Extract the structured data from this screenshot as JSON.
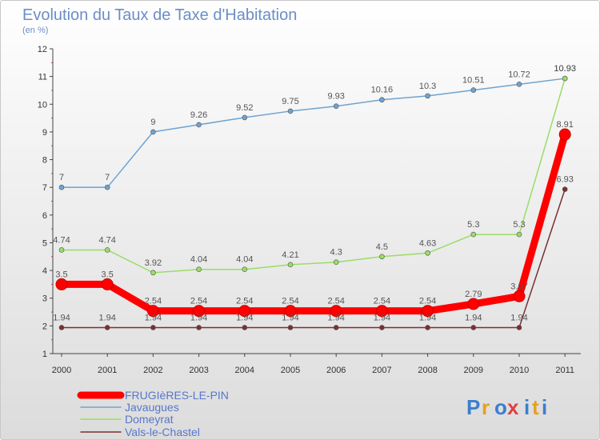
{
  "chart_data": {
    "type": "line",
    "title": "Evolution du Taux de Taxe d'Habitation",
    "subtitle": "(en %)",
    "x": [
      "2000",
      "2001",
      "2002",
      "2003",
      "2004",
      "2005",
      "2006",
      "2007",
      "2008",
      "2009",
      "2010",
      "2011"
    ],
    "ylim": [
      1,
      12
    ],
    "yticks": [
      1,
      2,
      3,
      4,
      5,
      6,
      7,
      8,
      9,
      10,
      11,
      12
    ],
    "series": [
      {
        "name": "FRUGIèRES-LE-PIN",
        "color": "#ff0000",
        "values": [
          3.5,
          3.5,
          2.54,
          2.54,
          2.54,
          2.54,
          2.54,
          2.54,
          2.54,
          2.79,
          3.07,
          8.91
        ],
        "labels": [
          "3.5",
          "3.5",
          "2.54",
          "2.54",
          "2.54",
          "2.54",
          "2.54",
          "2.54",
          "2.54",
          "2.79",
          "3.07",
          "8.91"
        ]
      },
      {
        "name": "Javaugues",
        "color": "#6fa3d0",
        "values": [
          7,
          7,
          9,
          9.26,
          9.52,
          9.75,
          9.93,
          10.16,
          10.3,
          10.51,
          10.72,
          10.93
        ],
        "labels": [
          "7",
          "7",
          "9",
          "9.26",
          "9.52",
          "9.75",
          "9.93",
          "10.16",
          "10.3",
          "10.51",
          "10.72",
          "10.93"
        ]
      },
      {
        "name": "Domeyrat",
        "color": "#99dd66",
        "values": [
          4.74,
          4.74,
          3.92,
          4.04,
          4.04,
          4.21,
          4.3,
          4.5,
          4.63,
          5.3,
          5.3,
          10.93
        ],
        "labels": [
          "4.74",
          "4.74",
          "3.92",
          "4.04",
          "4.04",
          "4.21",
          "4.3",
          "4.5",
          "4.63",
          "5.3",
          "5.3",
          "10.93"
        ]
      },
      {
        "name": "Vals-le-Chastel",
        "color": "#7a3030",
        "values": [
          1.94,
          1.94,
          1.94,
          1.94,
          1.94,
          1.94,
          1.94,
          1.94,
          1.94,
          1.94,
          1.94,
          6.93
        ],
        "labels": [
          "1.94",
          "1.94",
          "1.94",
          "1.94",
          "1.94",
          "1.94",
          "1.94",
          "1.94",
          "1.94",
          "1.94",
          "1.94",
          "6.93"
        ]
      }
    ],
    "grid": false,
    "legend_position": "bottom-left"
  },
  "logo": {
    "letters": [
      "P",
      "r",
      "o",
      "x",
      "i",
      "t",
      "i"
    ],
    "colors": [
      "#3a7fd0",
      "#e8a020",
      "#3a7fd0",
      "#e04040",
      "#3a7fd0",
      "#e8a020",
      "#3a7fd0"
    ]
  }
}
